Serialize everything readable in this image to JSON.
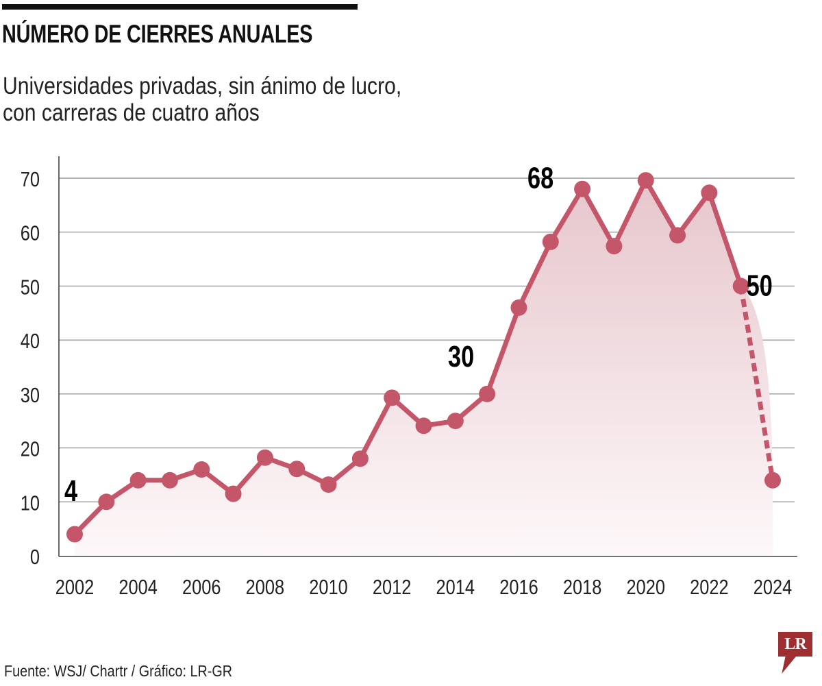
{
  "header": {
    "title": "NÚMERO DE CIERRES ANUALES",
    "subtitle_lines": [
      "Universidades privadas, sin ánimo de lucro,",
      "con carreras de cuatro años"
    ]
  },
  "footer": {
    "source": "Fuente: WSJ/ Chartr / Gráfico: LR-GR",
    "logo_text": "LR"
  },
  "colors": {
    "line": "#c4566a",
    "fill_top": "#e6c6cc",
    "fill_bottom": "#fdf8f9",
    "grid": "#9a9a9a",
    "axis": "#444444",
    "text": "#111111",
    "logo": "#9e2f31"
  },
  "chart_data": {
    "type": "line",
    "title": "NÚMERO DE CIERRES ANUALES",
    "subtitle": "Universidades privadas, sin ánimo de lucro, con carreras de cuatro años",
    "xlabel": "",
    "ylabel": "",
    "x": [
      2002,
      2003,
      2004,
      2005,
      2006,
      2007,
      2008,
      2009,
      2010,
      2011,
      2012,
      2013,
      2014,
      2015,
      2016,
      2017,
      2018,
      2019,
      2020,
      2021,
      2022,
      2023,
      2024
    ],
    "series": [
      {
        "name": "Cierres anuales",
        "values": [
          4,
          10,
          14,
          14,
          16,
          11.5,
          18.2,
          16.1,
          13.2,
          18,
          29.3,
          24.1,
          25,
          30,
          46,
          58.2,
          68,
          57.4,
          69.6,
          59.4,
          67.3,
          50,
          14
        ],
        "dashed_from_index": 21
      }
    ],
    "ylim": [
      0,
      70
    ],
    "xlim": [
      2002,
      2024
    ],
    "yticks": [
      0,
      10,
      20,
      30,
      40,
      50,
      60,
      70
    ],
    "xticks": [
      2002,
      2004,
      2006,
      2008,
      2010,
      2012,
      2014,
      2016,
      2018,
      2020,
      2022,
      2024
    ],
    "grid": true,
    "legend": "none",
    "annotations": [
      {
        "x": 2002,
        "text": "4",
        "position": "above"
      },
      {
        "x": 2015,
        "text": "30",
        "position": "above-left"
      },
      {
        "x": 2018,
        "text": "68",
        "position": "left"
      },
      {
        "x": 2023,
        "text": "50",
        "position": "right"
      }
    ]
  }
}
